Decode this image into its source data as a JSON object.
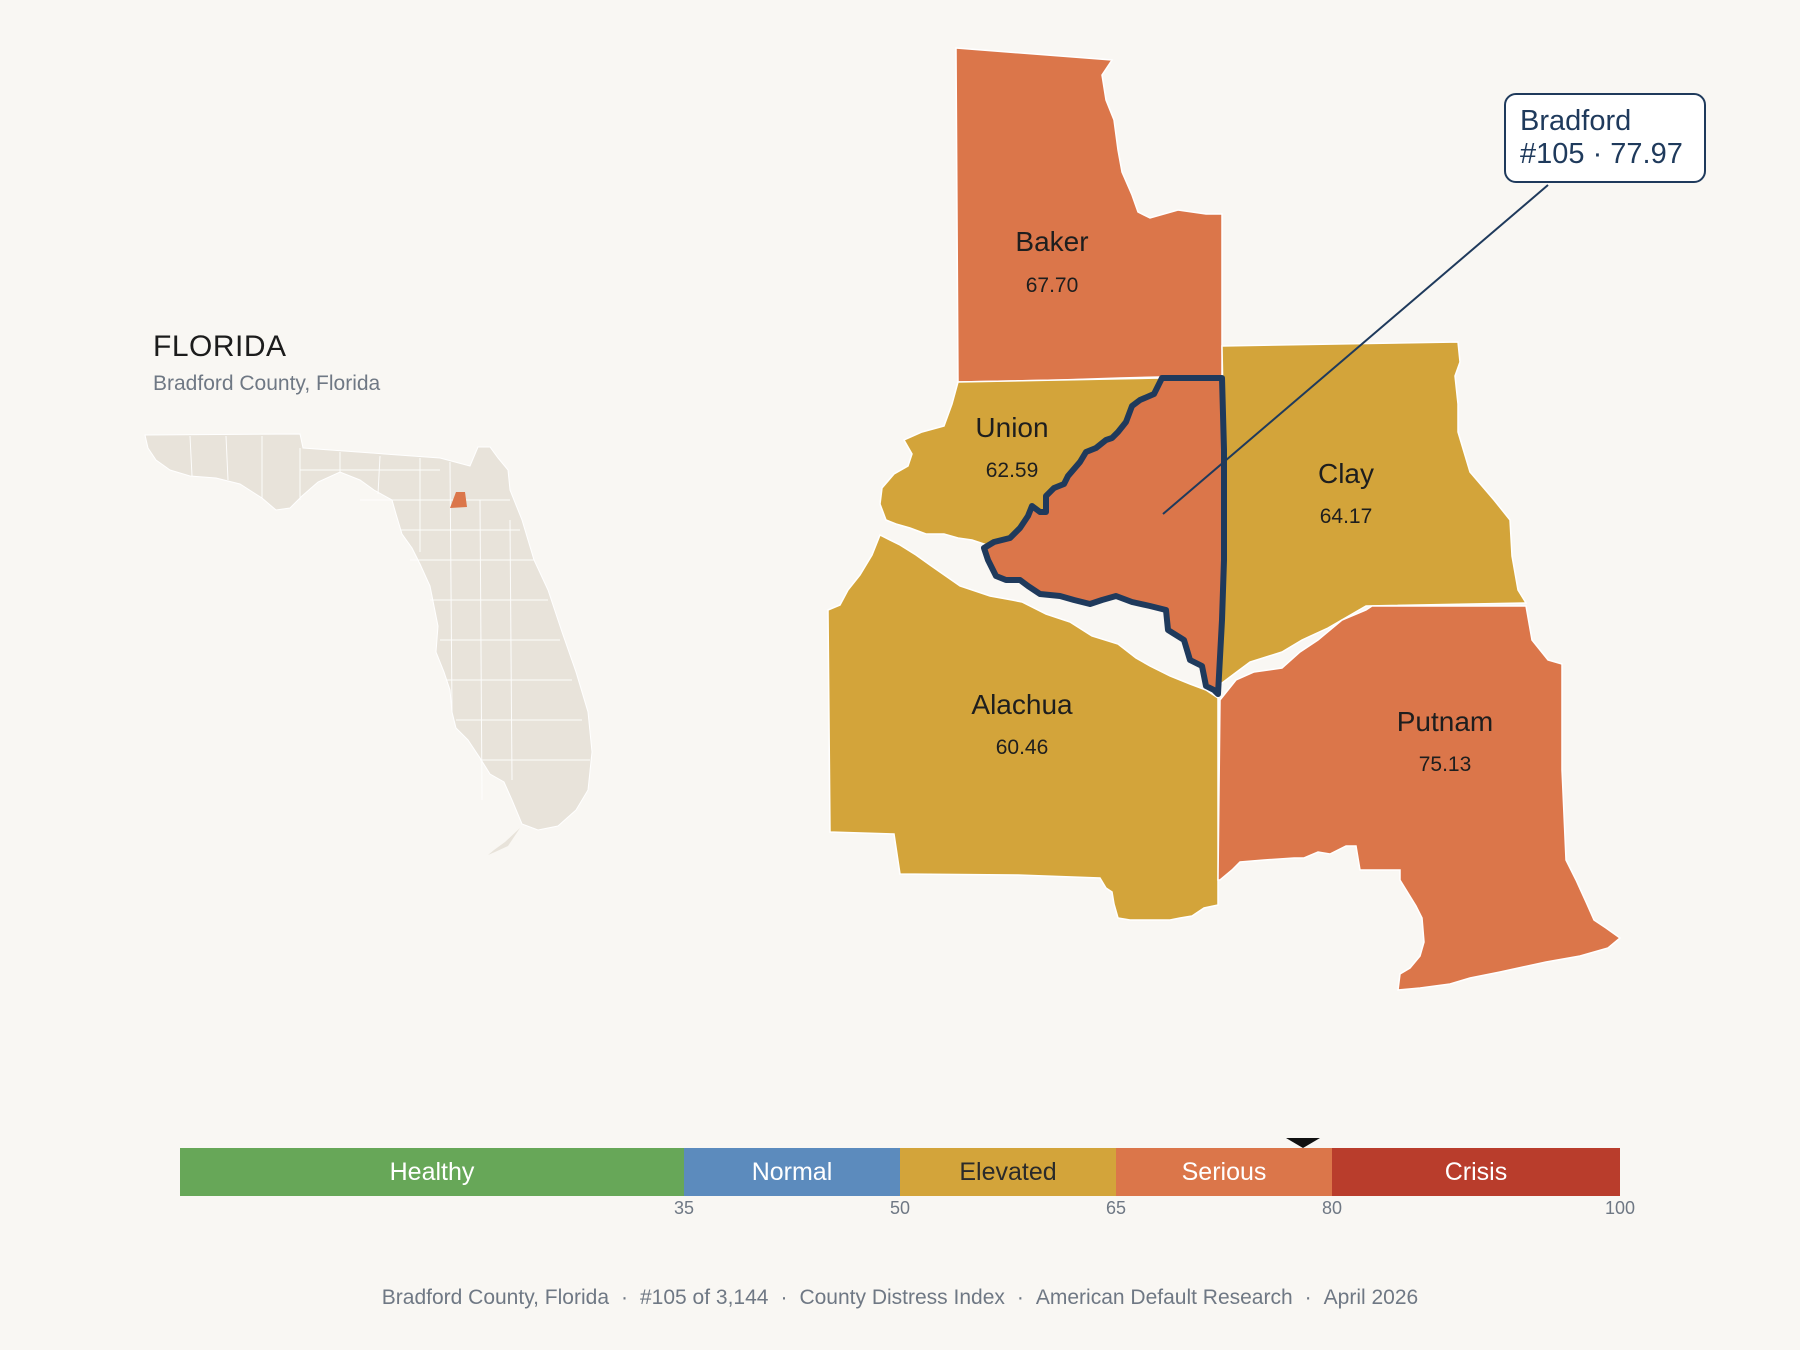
{
  "header": {
    "title": "FLORIDA",
    "subtitle": "Bradford County, Florida"
  },
  "counties": [
    {
      "id": "baker",
      "name": "Baker",
      "score": "67.70",
      "band": "Serious"
    },
    {
      "id": "union",
      "name": "Union",
      "score": "62.59",
      "band": "Elevated"
    },
    {
      "id": "clay",
      "name": "Clay",
      "score": "64.17",
      "band": "Elevated"
    },
    {
      "id": "alachua",
      "name": "Alachua",
      "score": "60.46",
      "band": "Elevated"
    },
    {
      "id": "putnam",
      "name": "Putnam",
      "score": "75.13",
      "band": "Serious"
    },
    {
      "id": "bradford",
      "name": "Bradford",
      "score": "77.97",
      "band": "Serious"
    }
  ],
  "callout": {
    "line1": "Bradford",
    "line2": "#105 · 77.97"
  },
  "scale": {
    "min": 0,
    "max": 100,
    "marker_value": 77.97,
    "segments": [
      {
        "label": "Healthy",
        "from": 0,
        "to": 35,
        "color": "#67a758",
        "text_color": "#ffffff"
      },
      {
        "label": "Normal",
        "from": 35,
        "to": 50,
        "color": "#5c8bbd",
        "text_color": "#ffffff"
      },
      {
        "label": "Elevated",
        "from": 50,
        "to": 65,
        "color": "#d3a43a",
        "text_color": "#2a2a2a"
      },
      {
        "label": "Serious",
        "from": 65,
        "to": 80,
        "color": "#db764a",
        "text_color": "#ffffff"
      },
      {
        "label": "Crisis",
        "from": 80,
        "to": 100,
        "color": "#b93d2c",
        "text_color": "#ffffff"
      }
    ],
    "ticks": [
      "35",
      "50",
      "65",
      "80",
      "100"
    ]
  },
  "footer": {
    "county": "Bradford County, Florida",
    "rank": "#105 of 3,144",
    "index": "County Distress Index",
    "source": "American Default Research",
    "date": "April 2026",
    "separator": "·"
  },
  "colors": {
    "background": "#f9f7f3",
    "state_fill": "#e8e3da",
    "highlight_outline": "#1f3a5c"
  }
}
